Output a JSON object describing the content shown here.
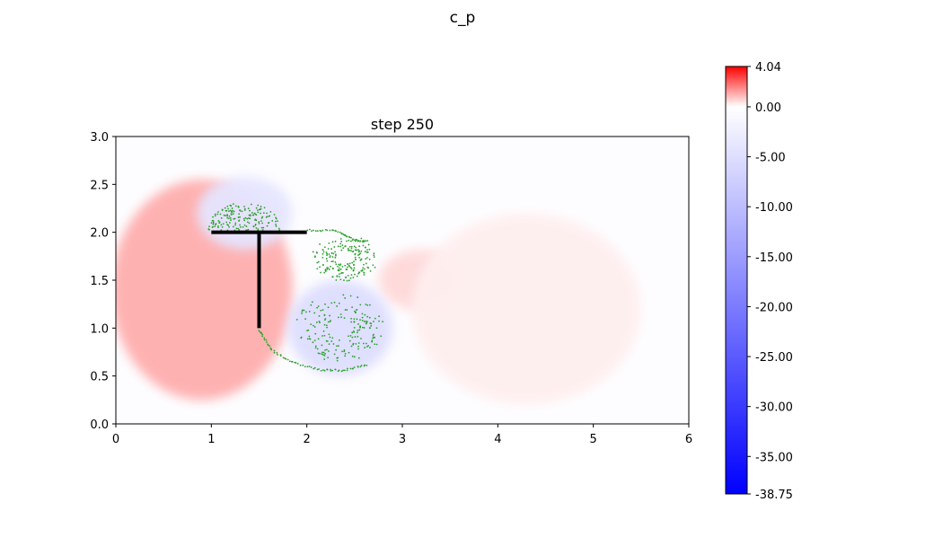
{
  "figure_title": "c_p",
  "chart_data": {
    "type": "heatmap",
    "title": "step 250",
    "xlabel": "",
    "ylabel": "",
    "xlim": [
      0,
      6
    ],
    "ylim": [
      0,
      3
    ],
    "x_ticks": [
      "0",
      "1",
      "2",
      "3",
      "4",
      "5",
      "6"
    ],
    "y_ticks": [
      "0.0",
      "0.5",
      "1.0",
      "1.5",
      "2.0",
      "2.5",
      "3.0"
    ],
    "grid": false,
    "colormap": "bwr",
    "colorbar": {
      "min": -38.75,
      "max": 4.04,
      "ticks": [
        "4.04",
        "0.00",
        "-5.00",
        "-10.00",
        "-15.00",
        "-20.00",
        "-25.00",
        "-30.00",
        "-35.00",
        "-38.75"
      ],
      "colors": {
        "low": "#0000ff",
        "mid": "#ffffff",
        "high": "#ff0000"
      }
    },
    "field_features": [
      {
        "kind": "high-pressure",
        "description": "upstream stagnation region in front of vertical plate",
        "center": [
          0.9,
          1.4
        ],
        "peak_value": 1.3
      },
      {
        "kind": "high-pressure",
        "description": "weak high-pressure lobe downstream",
        "center": [
          3.2,
          1.5
        ],
        "peak_value": 0.6
      },
      {
        "kind": "high-pressure",
        "description": "broad weak lobe far downstream",
        "center": [
          4.3,
          1.2
        ],
        "peak_value": 0.25
      },
      {
        "kind": "low-pressure",
        "description": "vortex core below the plate",
        "center": [
          2.35,
          1.0
        ],
        "peak_value": -5.0
      },
      {
        "kind": "low-pressure",
        "description": "vortex above horizontal plate",
        "center": [
          1.35,
          2.2
        ],
        "peak_value": -4.0
      }
    ],
    "body": {
      "description": "T-shaped plate",
      "segments": [
        {
          "from": [
            1.0,
            2.0
          ],
          "to": [
            2.0,
            2.0
          ]
        },
        {
          "from": [
            1.5,
            2.0
          ],
          "to": [
            1.5,
            1.0
          ]
        }
      ],
      "color": "#000000"
    },
    "particles": {
      "color": "#2ca02c",
      "groups": [
        {
          "kind": "dome",
          "center": [
            1.35,
            2.0
          ],
          "rx": 0.38,
          "ry": 0.3
        },
        {
          "kind": "ring",
          "center": [
            2.4,
            1.74
          ],
          "rx": 0.33,
          "ry": 0.24
        },
        {
          "kind": "ring",
          "center": [
            2.35,
            1.0
          ],
          "rx": 0.45,
          "ry": 0.34
        },
        {
          "kind": "curve",
          "points": [
            [
              2.0,
              2.02
            ],
            [
              2.3,
              2.02
            ],
            [
              2.5,
              1.92
            ],
            [
              2.62,
              1.9
            ]
          ]
        },
        {
          "kind": "curve",
          "points": [
            [
              1.5,
              0.98
            ],
            [
              1.62,
              0.78
            ],
            [
              1.85,
              0.64
            ],
            [
              2.15,
              0.56
            ],
            [
              2.4,
              0.56
            ],
            [
              2.65,
              0.62
            ]
          ]
        }
      ]
    }
  }
}
